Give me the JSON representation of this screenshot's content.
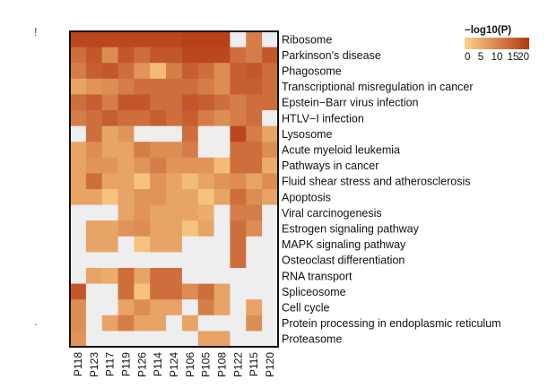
{
  "chart_data": {
    "type": "heatmap",
    "columns": [
      "P118",
      "P123",
      "P117",
      "P119",
      "P126",
      "P114",
      "P124",
      "P106",
      "P105",
      "P108",
      "P122",
      "P115",
      "P120"
    ],
    "rows": [
      "Ribosome",
      "Parkinson's disease",
      "Phagosome",
      "Transcriptional misregulation in cancer",
      "Epstein−Barr virus infection",
      "HTLV−I infection",
      "Lysosome",
      "Acute myeloid leukemia",
      "Pathways in cancer",
      "Fluid shear stress and atherosclerosis",
      "Apoptosis",
      "Viral carcinogenesis",
      "Estrogen signaling pathway",
      "MAPK signaling pathway",
      "Osteoclast differentiation",
      "RNA transport",
      "Spliceosome",
      "Cell cycle",
      "Protein processing in endoplasmic reticulum",
      "Proteasome"
    ],
    "values": [
      [
        18,
        18,
        18,
        18,
        18,
        18,
        18,
        19,
        19,
        19,
        0,
        11,
        0
      ],
      [
        13,
        16,
        9,
        16,
        13,
        16,
        16,
        18,
        18,
        18,
        13,
        11,
        16
      ],
      [
        11,
        15,
        16,
        13,
        8,
        3,
        11,
        15,
        13,
        9,
        15,
        16,
        13
      ],
      [
        6,
        8,
        9,
        11,
        13,
        13,
        13,
        13,
        11,
        9,
        15,
        15,
        13
      ],
      [
        13,
        15,
        11,
        16,
        16,
        13,
        13,
        16,
        15,
        13,
        11,
        13,
        13
      ],
      [
        11,
        13,
        15,
        13,
        13,
        15,
        13,
        15,
        11,
        9,
        11,
        13,
        0
      ],
      [
        0,
        13,
        6,
        8,
        0,
        0,
        0,
        13,
        0,
        0,
        18,
        11,
        6
      ],
      [
        6,
        9,
        6,
        6,
        11,
        9,
        9,
        11,
        0,
        0,
        13,
        13,
        9
      ],
      [
        6,
        8,
        8,
        6,
        8,
        11,
        8,
        8,
        8,
        3,
        13,
        13,
        5
      ],
      [
        6,
        13,
        6,
        6,
        2,
        8,
        6,
        3,
        6,
        8,
        9,
        6,
        9
      ],
      [
        6,
        6,
        2,
        6,
        8,
        8,
        6,
        6,
        2,
        6,
        13,
        9,
        6
      ],
      [
        0,
        0,
        0,
        6,
        8,
        6,
        6,
        6,
        5,
        0,
        11,
        11,
        0
      ],
      [
        0,
        6,
        6,
        8,
        9,
        6,
        6,
        2,
        6,
        0,
        13,
        9,
        0
      ],
      [
        0,
        6,
        6,
        0,
        2,
        6,
        6,
        0,
        0,
        0,
        13,
        0,
        0
      ],
      [
        0,
        0,
        0,
        0,
        0,
        0,
        0,
        0,
        0,
        0,
        13,
        0,
        0
      ],
      [
        0,
        6,
        5,
        13,
        6,
        13,
        13,
        0,
        0,
        0,
        0,
        0,
        0
      ],
      [
        16,
        0,
        0,
        13,
        2,
        13,
        13,
        9,
        13,
        6,
        0,
        0,
        0
      ],
      [
        9,
        0,
        0,
        6,
        9,
        6,
        6,
        0,
        11,
        6,
        0,
        6,
        0
      ],
      [
        9,
        0,
        6,
        11,
        6,
        6,
        0,
        6,
        0,
        0,
        0,
        9,
        0
      ],
      [
        8,
        0,
        0,
        0,
        0,
        0,
        0,
        0,
        6,
        6,
        0,
        0,
        0
      ]
    ],
    "zero_color": "#eeeeee",
    "color_low": "#fdd28a",
    "color_high": "#b43812",
    "legend": {
      "title": "−log10(P)",
      "ticks": [
        "0",
        "5",
        "10",
        "15",
        "20"
      ],
      "range": [
        0,
        20
      ],
      "placement": "top-right"
    }
  },
  "page_marks": {
    "stray_top": "!",
    "stray_mid": "."
  }
}
